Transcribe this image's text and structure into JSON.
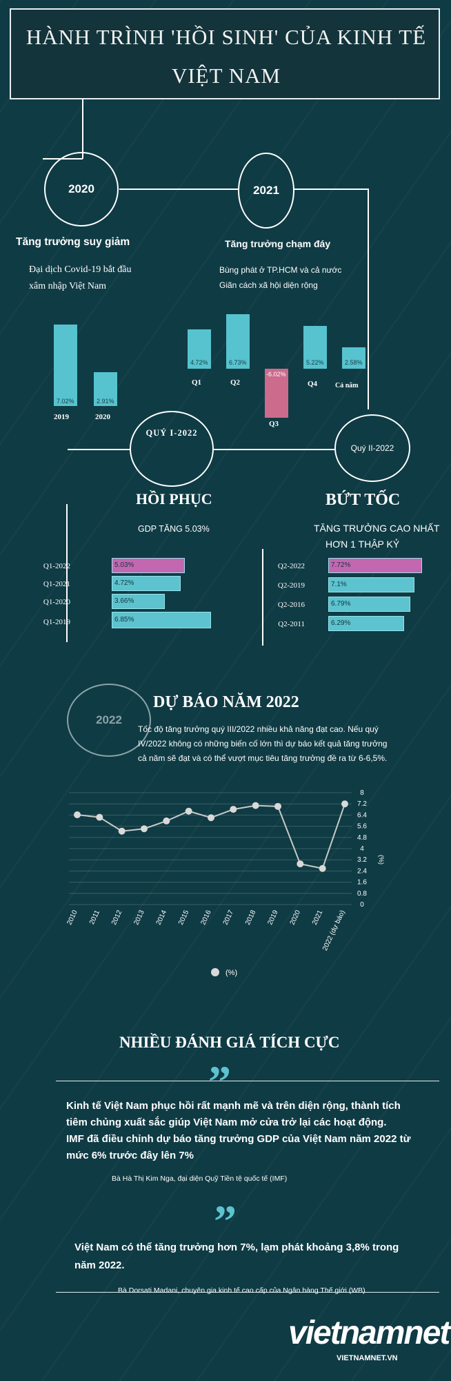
{
  "title": {
    "line1": "HÀNH TRÌNH 'HỒI SINH' CỦA KINH TẾ",
    "line2": "VIỆT NAM"
  },
  "section2020": {
    "year": "2020",
    "heading": "Tăng trưởng suy giảm",
    "desc1": "Đại dịch Covid-19 bắt đầu",
    "desc2": "xâm nhập Việt Nam"
  },
  "section2021": {
    "year": "2021",
    "heading": "Tăng trưởng chạm  đáy",
    "desc1": "Bùng phát ở TP.HCM và cả nước",
    "desc2": "Giãn cách xã hội diện rộng"
  },
  "sectionQ1": {
    "circle": "QUÝ I-2022",
    "heading": "HỒI PHỤC",
    "sub": "GDP TĂNG 5.03%"
  },
  "sectionQ2": {
    "circle": "Quý II-2022",
    "heading": "BỨT TỐC",
    "sub1": "TĂNG TRƯỞNG CAO NHẤT",
    "sub2": "HƠN 1 THẬP KỶ"
  },
  "forecast": {
    "circle": "2022",
    "heading": "DỰ BÁO NĂM 2022",
    "text1": "Tốc độ tăng trưởng quý III/2022 nhiều khả năng đạt cao. Nếu quý",
    "text2": "IV/2022 không có những biến cố lớn thì dự báo kết quả tăng trưởng",
    "text3": "cả năm sẽ đạt và có thể vượt mục tiêu tăng trưởng đề ra từ 6-6,5%."
  },
  "reviews": {
    "heading": "NHIỀU ĐÁNH GIÁ TÍCH CỰC",
    "quote_mark": "”",
    "quote1": {
      "l1": "Kinh tế Việt Nam phục hồi rất mạnh mẽ và trên diện rộng, thành tích",
      "l2": "tiêm chủng xuất sắc giúp Việt Nam mở cửa trở lại các hoạt động.",
      "l3": "IMF đã điều chỉnh dự báo tăng trưởng GDP của Việt Nam năm 2022 từ",
      "l4": "mức 6% trước đây lên 7%",
      "author": "Bà Hà Thị Kim Nga, đại diện Quỹ Tiền tệ quốc tế (IMF)"
    },
    "quote2": {
      "l1": "Việt Nam có thể tăng trưởng hơn 7%, lạm phát khoảng 3,8% trong",
      "l2": "năm 2022.",
      "author": "Bà Dorsati Madani, chuyên gia kinh tế cao cấp của Ngân hàng Thế giới (WB)"
    }
  },
  "logo": {
    "text": "vietnamnet",
    "url": "VIETNAMNET.VN"
  },
  "colors": {
    "background": "#0f3b44",
    "bar": "#5cc3cf",
    "highlight": "#c467b1",
    "negative": "#cc6b8c"
  },
  "chart_data": [
    {
      "type": "bar",
      "categories": [
        "2019",
        "2020"
      ],
      "values": [
        7.02,
        2.91
      ],
      "labels": [
        "7.02%",
        "2.91%"
      ]
    },
    {
      "type": "bar",
      "categories": [
        "Q1",
        "Q2",
        "Q3",
        "Q4",
        "Cả năm"
      ],
      "values": [
        4.72,
        6.73,
        -6.02,
        5.22,
        2.58
      ],
      "labels": [
        "4.72%",
        "6.73%",
        "-6.02%",
        "5.22%",
        "2.58%"
      ]
    },
    {
      "type": "bar",
      "orientation": "horizontal",
      "categories": [
        "Q1-2022",
        "Q1-2021",
        "Q1-2020",
        "Q1-2019"
      ],
      "values": [
        5.03,
        4.72,
        3.66,
        6.85
      ],
      "labels": [
        "5.03%",
        "4.72%",
        "3.66%",
        "6.85%"
      ],
      "highlight": "Q1-2022"
    },
    {
      "type": "bar",
      "orientation": "horizontal",
      "categories": [
        "Q2-2022",
        "Q2-2019",
        "Q2-2016",
        "Q2-2011"
      ],
      "values": [
        7.72,
        7.1,
        6.79,
        6.29
      ],
      "labels": [
        "7.72%",
        "7.1%",
        "6.79%",
        "6.29%"
      ],
      "highlight": "Q2-2022"
    },
    {
      "type": "line",
      "x": [
        "2010",
        "2011",
        "2012",
        "2013",
        "2014",
        "2015",
        "2016",
        "2017",
        "2018",
        "2019",
        "2020",
        "2021",
        "2022 (dự báo)"
      ],
      "series": [
        {
          "name": "(%)",
          "values": [
            6.42,
            6.24,
            5.25,
            5.42,
            5.98,
            6.68,
            6.21,
            6.81,
            7.08,
            7.02,
            2.91,
            2.58,
            7.2
          ]
        }
      ],
      "yticks": [
        "8",
        "7.2",
        "6.4",
        "5.6",
        "4.8",
        "4",
        "3.2",
        "2.4",
        "1.6",
        "0.8",
        "0"
      ],
      "ylim": [
        0,
        8
      ],
      "ylabel": "(%)",
      "grid": true,
      "legend": "bottom"
    }
  ]
}
